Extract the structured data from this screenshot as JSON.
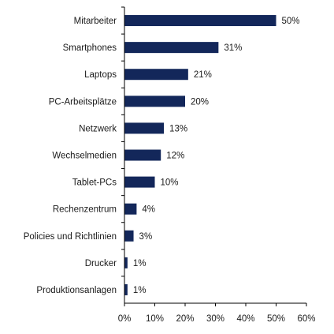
{
  "chart_data": {
    "type": "bar",
    "orientation": "horizontal",
    "categories": [
      "Mitarbeiter",
      "Smartphones",
      "Laptops",
      "PC-Arbeitsplätze",
      "Netzwerk",
      "Wechselmedien",
      "Tablet-PCs",
      "Rechenzentrum",
      "Policies und Richtlinien",
      "Drucker",
      "Produktionsanlagen"
    ],
    "values": [
      50,
      31,
      21,
      20,
      13,
      12,
      10,
      4,
      3,
      1,
      1
    ],
    "value_labels": [
      "50%",
      "31%",
      "21%",
      "20%",
      "13%",
      "12%",
      "10%",
      "4%",
      "3%",
      "1%",
      "1%"
    ],
    "x_ticks": [
      "0%",
      "10%",
      "20%",
      "30%",
      "40%",
      "50%",
      "60%"
    ],
    "xlim": [
      0,
      60
    ],
    "title": "",
    "xlabel": "",
    "ylabel": "",
    "grid": false,
    "legend": "none",
    "bar_color": "#13275a"
  }
}
